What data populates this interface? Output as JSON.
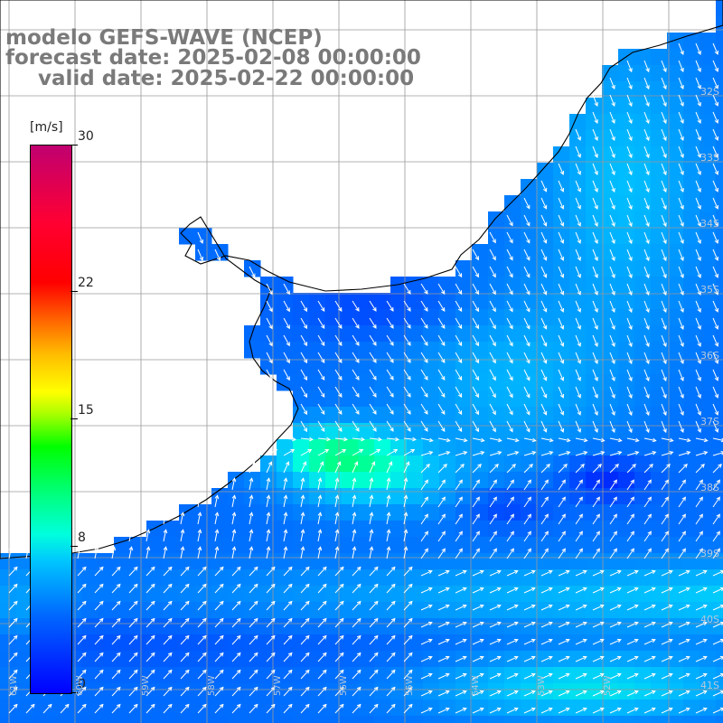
{
  "title": {
    "line1": "modelo GEFS-WAVE (NCEP)",
    "line2": "forecast date: 2025-02-08 00:00:00",
    "line3": "valid date: 2025-02-22 00:00:00"
  },
  "colorbar": {
    "unit": "[m/s]",
    "min": 0,
    "max": 30,
    "ticks": [
      {
        "value": 30,
        "label": "30"
      },
      {
        "value": 22,
        "label": "22"
      },
      {
        "value": 15,
        "label": "15"
      },
      {
        "value": 8,
        "label": "8"
      },
      {
        "value": 0,
        "label": "0"
      }
    ]
  },
  "lat_labels": [
    {
      "id": "lat-32",
      "text": "32S"
    },
    {
      "id": "lat-33",
      "text": "33S"
    },
    {
      "id": "lat-34",
      "text": "34S"
    },
    {
      "id": "lat-35",
      "text": "35S"
    },
    {
      "id": "lat-36",
      "text": "36S"
    },
    {
      "id": "lat-37",
      "text": "37S"
    },
    {
      "id": "lat-38",
      "text": "38S"
    },
    {
      "id": "lat-39",
      "text": "39S"
    },
    {
      "id": "lat-40",
      "text": "40S"
    },
    {
      "id": "lat-41",
      "text": "41S"
    }
  ],
  "lon_labels": [
    {
      "id": "lon-61",
      "text": "61W"
    },
    {
      "id": "lon-60",
      "text": "60W"
    },
    {
      "id": "lon-59",
      "text": "59W"
    },
    {
      "id": "lon-58",
      "text": "58W"
    },
    {
      "id": "lon-57",
      "text": "57W"
    },
    {
      "id": "lon-56",
      "text": "56W"
    },
    {
      "id": "lon-55",
      "text": "55W"
    },
    {
      "id": "lon-54",
      "text": "54W"
    },
    {
      "id": "lon-53",
      "text": "53W"
    },
    {
      "id": "lon-52",
      "text": "52W"
    }
  ],
  "colors": {
    "land": "#ffffff",
    "coast": "#000000",
    "grid": "#9a9a9a",
    "arrows": "#ffffff",
    "title": "#7a7a7a"
  },
  "map": {
    "field": "wind speed",
    "vectors": "wind direction",
    "region": "Rio de la Plata / south Brazil / northern Argentina"
  }
}
